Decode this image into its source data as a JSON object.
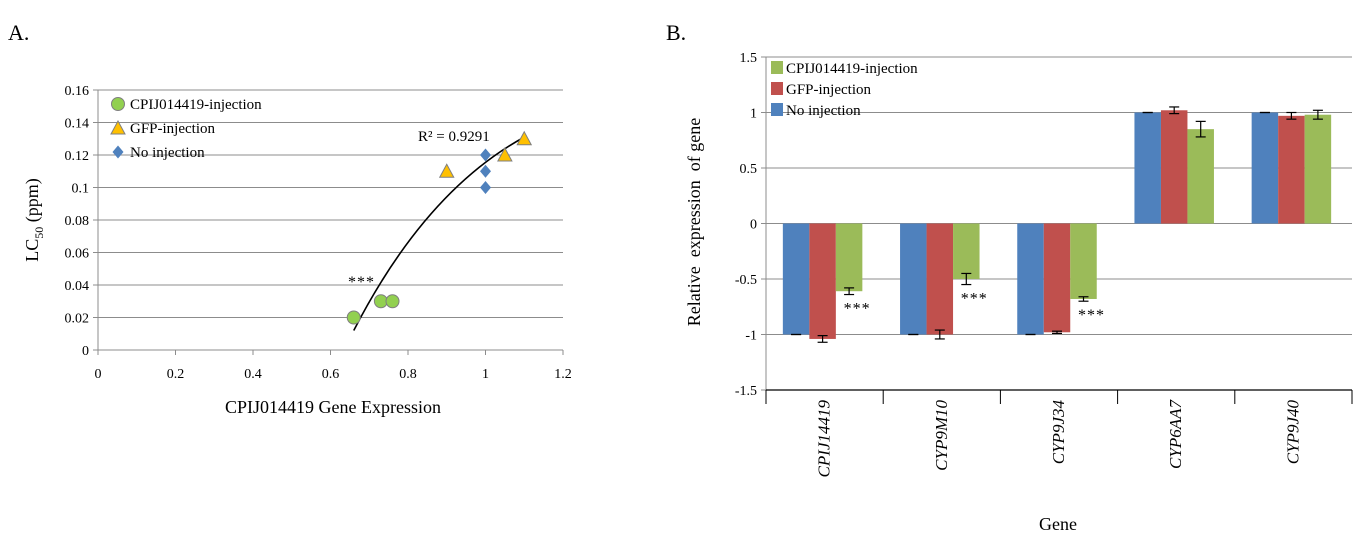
{
  "chart_data": [
    {
      "panel": "A.",
      "type": "scatter",
      "xlabel": "CPIJ014419 Gene Expression",
      "ylabel": "LC50 (ppm)",
      "ylabel_main": "LC",
      "ylabel_sub": "50",
      "ylabel_unit": " (ppm)",
      "xlim": [
        0,
        1.2
      ],
      "ylim": [
        0,
        0.16
      ],
      "x_ticks": [
        "0",
        "0.2",
        "0.4",
        "0.6",
        "0.8",
        "1",
        "1.2"
      ],
      "y_ticks": [
        "0",
        "0.02",
        "0.04",
        "0.06",
        "0.08",
        "0.1",
        "0.12",
        "0.14",
        "0.16"
      ],
      "grid": "horizontal",
      "legend_position": "top-left",
      "series": [
        {
          "name": "CPIJ014419-injection",
          "marker": "circle",
          "color": "#92d050",
          "x": [
            0.66,
            0.73,
            0.76
          ],
          "y": [
            0.02,
            0.03,
            0.03
          ]
        },
        {
          "name": "GFP-injection",
          "marker": "triangle",
          "color": "#ffc000",
          "x": [
            0.9,
            1.05,
            1.1
          ],
          "y": [
            0.11,
            0.12,
            0.13
          ]
        },
        {
          "name": "No injection",
          "marker": "diamond",
          "color": "#4f81bd",
          "x": [
            1.0,
            1.0,
            1.0
          ],
          "y": [
            0.1,
            0.11,
            0.12
          ]
        }
      ],
      "trendline": {
        "x_start": 0.66,
        "x_end": 1.1,
        "y_start": 0.012,
        "y_end": 0.131
      },
      "r2_label": "R² = 0.9291",
      "annotation": "***"
    },
    {
      "panel": "B.",
      "type": "bar",
      "xlabel": "Gene",
      "ylabel": "Relative  expression  of gene",
      "ylim": [
        -1.5,
        1.5
      ],
      "y_ticks": [
        "1.5",
        "1",
        "0.5",
        "0",
        "-0.5",
        "-1",
        "-1.5"
      ],
      "grid": "horizontal",
      "legend_position": "top-left",
      "categories": [
        "CPIJ14419",
        "CYP9M10",
        "CYP9J34",
        "CYP6AA7",
        "CYP9J40"
      ],
      "series": [
        {
          "name": "No injection",
          "color": "#4f81bd",
          "values": [
            -1.0,
            -1.0,
            -1.0,
            1.0,
            1.0
          ],
          "errors": [
            0.0,
            0.0,
            0.0,
            0.0,
            0.0
          ]
        },
        {
          "name": "GFP-injection",
          "color": "#c0504d",
          "values": [
            -1.04,
            -1.0,
            -0.98,
            1.02,
            0.97
          ],
          "errors": [
            0.03,
            0.04,
            0.01,
            0.03,
            0.03
          ]
        },
        {
          "name": "CPIJ014419-injection",
          "color": "#9bbb59",
          "values": [
            -0.61,
            -0.5,
            -0.68,
            0.85,
            0.98
          ],
          "errors": [
            0.03,
            0.05,
            0.02,
            0.07,
            0.04
          ]
        }
      ],
      "legend_order": [
        "CPIJ014419-injection",
        "GFP-injection",
        "No injection"
      ],
      "significance": [
        "***",
        "***",
        "***",
        "",
        ""
      ]
    }
  ]
}
